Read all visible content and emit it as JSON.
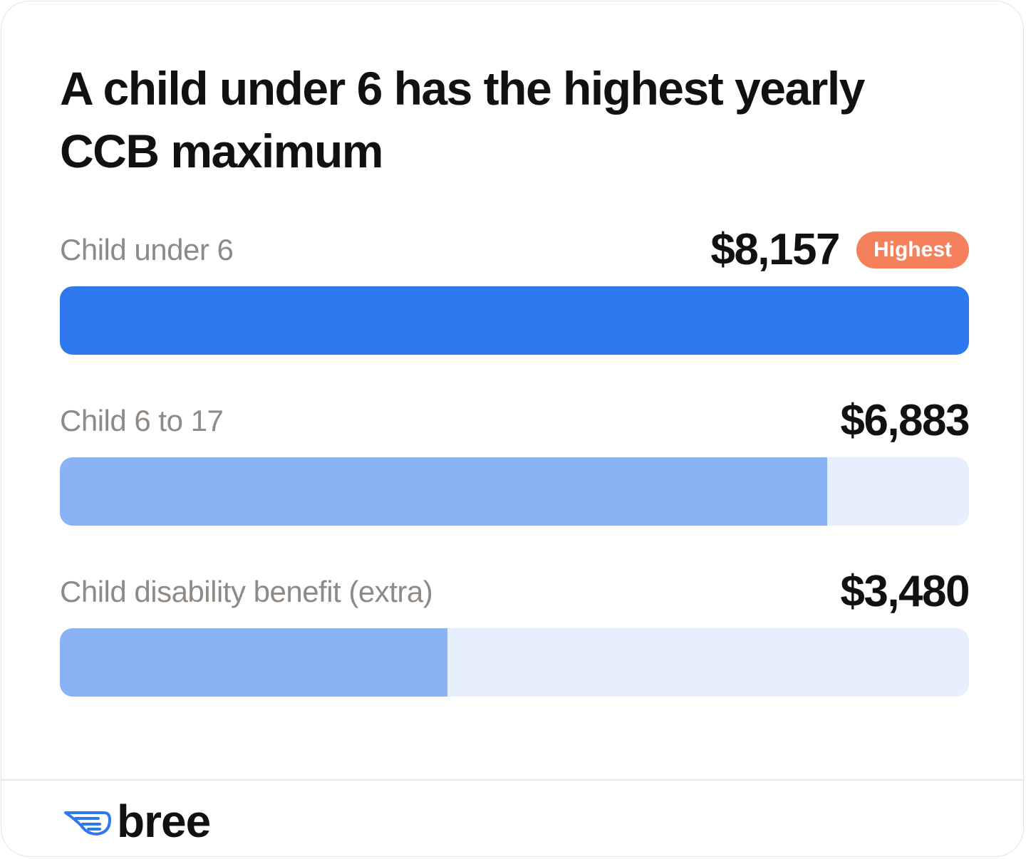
{
  "chart_data": {
    "type": "bar",
    "orientation": "horizontal",
    "title": "A child under 6 has the highest yearly CCB maximum",
    "categories": [
      "Child under 6",
      "Child 6 to 17",
      "Child disability benefit (extra)"
    ],
    "values": [
      8157,
      6883,
      3480
    ],
    "value_labels": [
      "$8,157",
      "$6,883",
      "$3,480"
    ],
    "xlim": [
      0,
      8157
    ],
    "highlight": {
      "index": 0,
      "badge": "Highest"
    },
    "grid": false,
    "legend": "none",
    "colors": {
      "highlight_fill": "#2e78f0",
      "fill": "#8ab3f6",
      "track": "#e6effd",
      "badge_bg": "#f5805c",
      "label": "#8f8a85",
      "value": "#111111"
    }
  },
  "brand": {
    "name": "bree",
    "icon": "wing-icon",
    "icon_color": "#2e78f0"
  }
}
